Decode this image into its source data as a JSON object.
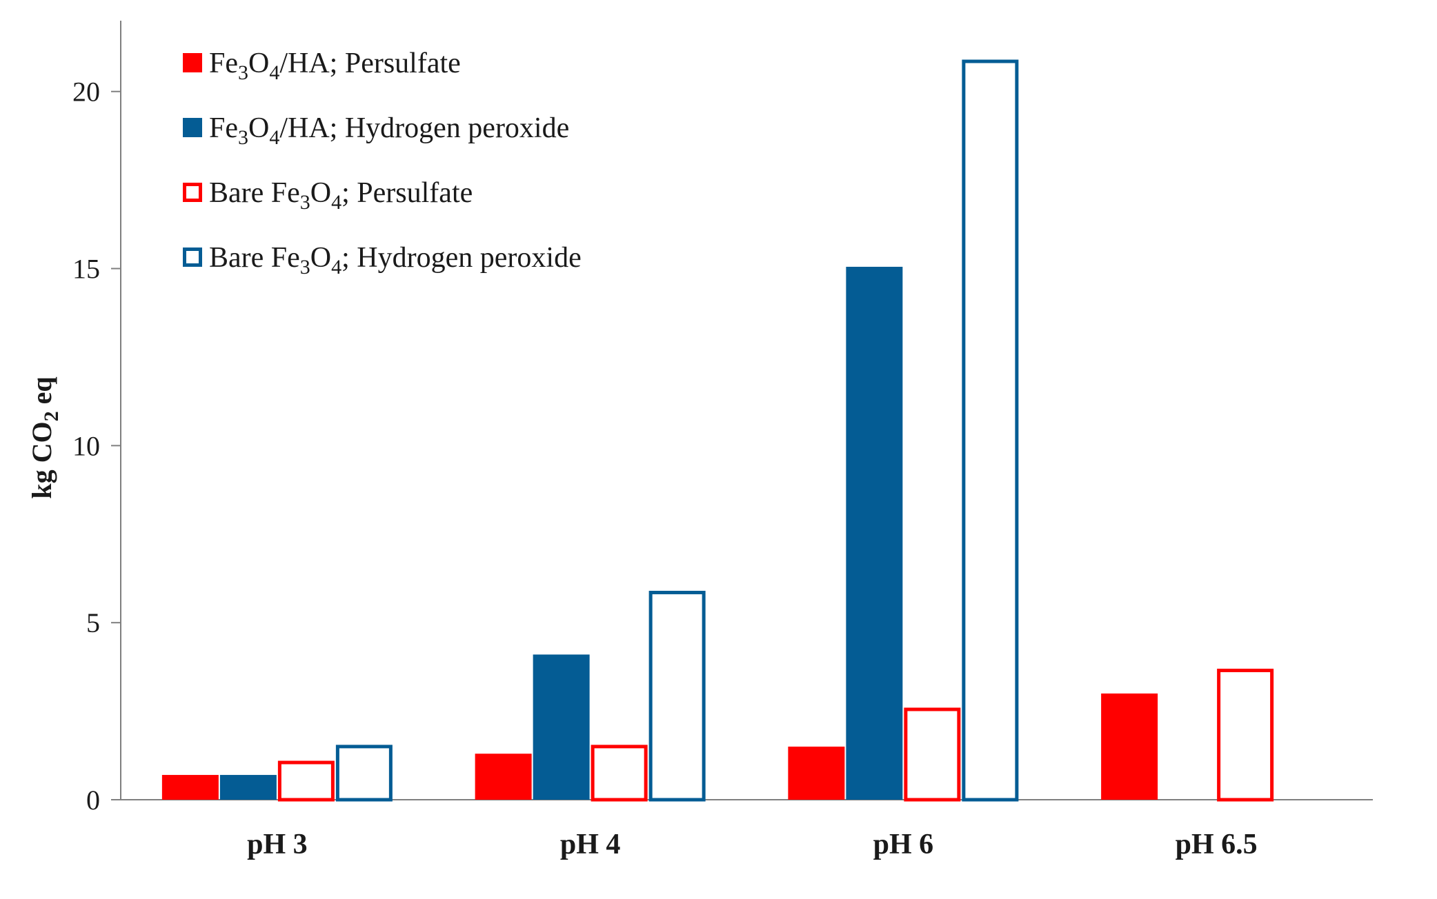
{
  "chart_data": {
    "type": "bar",
    "title": "",
    "xlabel": "",
    "ylabel": "kg CO",
    "ylabel_sub": "2",
    "ylabel_tail": " eq",
    "ylim": [
      0,
      22
    ],
    "yticks": [
      0,
      5,
      10,
      15,
      20
    ],
    "categories": [
      "pH 3",
      "pH 4",
      "pH 6",
      "pH 6.5"
    ],
    "series": [
      {
        "key": "ha_ps",
        "name": "Fe3O4/HA; Persulfate",
        "legend_parts": [
          "Fe",
          "3",
          "O",
          "4",
          "/HA; Persulfate"
        ],
        "fill": "#ff0000",
        "stroke": "#ff0000",
        "style": "filled",
        "values": [
          0.7,
          1.3,
          1.5,
          3.0
        ]
      },
      {
        "key": "ha_hp",
        "name": "Fe3O4/HA; Hydrogen peroxide",
        "legend_parts": [
          "Fe",
          "3",
          "O",
          "4",
          "/HA; Hydrogen peroxide"
        ],
        "fill": "#045c94",
        "stroke": "#045c94",
        "style": "filled",
        "values": [
          0.7,
          4.1,
          15.05,
          null
        ]
      },
      {
        "key": "bare_ps",
        "name": "Bare Fe3O4; Persulfate",
        "legend_parts": [
          "Bare Fe",
          "3",
          "O",
          "4",
          "; Persulfate"
        ],
        "fill": "#ffffff",
        "stroke": "#ff0000",
        "style": "outline",
        "values": [
          1.1,
          1.55,
          2.6,
          3.7
        ]
      },
      {
        "key": "bare_hp",
        "name": "Bare Fe3O4; Hydrogen peroxide",
        "legend_parts": [
          "Bare Fe",
          "3",
          "O",
          "4",
          "; Hydrogen peroxide"
        ],
        "fill": "#ffffff",
        "stroke": "#045c94",
        "style": "outline",
        "values": [
          1.55,
          5.9,
          20.9,
          null
        ]
      }
    ],
    "legend_position": "top-left",
    "grid": false
  }
}
